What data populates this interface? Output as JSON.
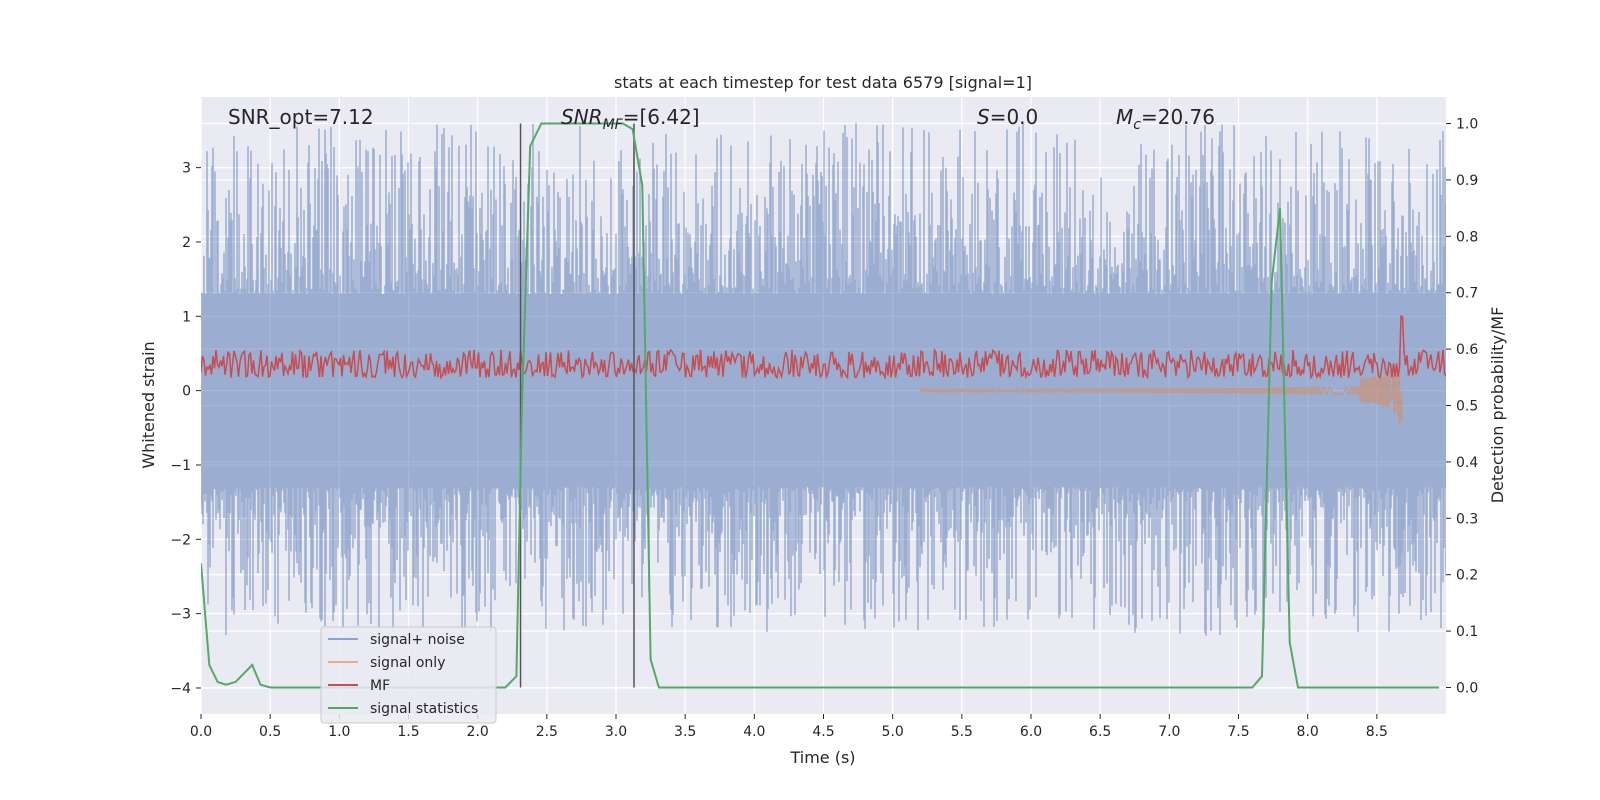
{
  "chart_data": {
    "type": "line",
    "title": "stats at each timestep for test data 6579 [signal=1]",
    "xlabel": "Time (s)",
    "ylabel": "Whitened strain",
    "y2label": "Detection probability/MF",
    "xlim": [
      0,
      9.0
    ],
    "ylim": [
      -4.35,
      3.95
    ],
    "y2lim": [
      -0.047,
      1.047
    ],
    "xticks": [
      "0.0",
      "0.5",
      "1.0",
      "1.5",
      "2.0",
      "2.5",
      "3.0",
      "3.5",
      "4.0",
      "4.5",
      "5.0",
      "5.5",
      "6.0",
      "6.5",
      "7.0",
      "7.5",
      "8.0",
      "8.5"
    ],
    "yticks": [
      "3",
      "2",
      "1",
      "0",
      "−1",
      "−2",
      "−3",
      "−4"
    ],
    "y2ticks": [
      "1.0",
      "0.9",
      "0.8",
      "0.7",
      "0.6",
      "0.5",
      "0.4",
      "0.3",
      "0.2",
      "0.1",
      "0.0"
    ],
    "grid": true,
    "legend_position": "lower-left",
    "annotations": {
      "snr_opt": "SNR_opt=7.12",
      "snr_mf_base": "SNR",
      "snr_mf_sub": "MF",
      "snr_mf_rest": "=[6.42]",
      "s_base": "S",
      "s_rest": "=0.0",
      "mc_base": "M",
      "mc_sub": "c",
      "mc_rest": "=20.76"
    },
    "vertical_lines_x": [
      2.31,
      3.13
    ],
    "series": [
      {
        "name": "signal+ noise",
        "color": "#4c72b0",
        "opacity": 0.5,
        "envelope_upper_range": [
          1.3,
          3.6
        ],
        "envelope_lower_range": [
          -1.3,
          -3.3
        ]
      },
      {
        "name": "signal only",
        "color": "#dd8452",
        "opacity": 0.5,
        "chirp_start": 5.2,
        "chirp_end": 8.68,
        "chirp_peak_amplitude": 1.3
      },
      {
        "name": "MF",
        "color": "#c44e52",
        "band_min": 0.05,
        "band_max": 0.55,
        "peak_x": 8.68,
        "peak_y": 1.0
      },
      {
        "name": "signal statistics",
        "color": "#55a868",
        "axis": "right",
        "x": [
          0.0,
          0.06,
          0.12,
          0.18,
          0.25,
          0.31,
          0.37,
          0.43,
          0.5,
          2.2,
          2.28,
          2.32,
          2.38,
          2.46,
          3.05,
          3.12,
          3.19,
          3.25,
          3.31,
          3.37,
          7.6,
          7.67,
          7.74,
          7.8,
          7.87,
          7.93,
          8.95
        ],
        "y": [
          0.22,
          0.04,
          0.01,
          0.005,
          0.01,
          0.025,
          0.04,
          0.005,
          0.0,
          0.0,
          0.02,
          0.5,
          0.96,
          1.0,
          1.0,
          0.99,
          0.89,
          0.05,
          0.0,
          0.0,
          0.0,
          0.02,
          0.72,
          0.85,
          0.08,
          0.0,
          0.0
        ]
      }
    ]
  }
}
